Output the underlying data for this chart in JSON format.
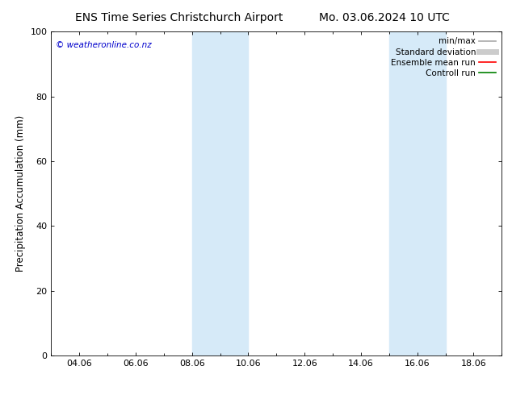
{
  "title_left": "ENS Time Series Christchurch Airport",
  "title_right": "Mo. 03.06.2024 10 UTC",
  "ylabel": "Precipitation Accumulation (mm)",
  "watermark": "© weatheronline.co.nz",
  "xlim": [
    3.0,
    19.0
  ],
  "ylim": [
    0,
    100
  ],
  "xticks": [
    4.0,
    6.0,
    8.0,
    10.0,
    12.0,
    14.0,
    16.0,
    18.0
  ],
  "xticklabels": [
    "04.06",
    "06.06",
    "08.06",
    "10.06",
    "12.06",
    "14.06",
    "16.06",
    "18.06"
  ],
  "yticks": [
    0,
    20,
    40,
    60,
    80,
    100
  ],
  "shaded_bands": [
    {
      "x_start": 8.0,
      "x_end": 10.0,
      "color": "#d6eaf8",
      "alpha": 1.0
    },
    {
      "x_start": 15.0,
      "x_end": 17.0,
      "color": "#d6eaf8",
      "alpha": 1.0
    }
  ],
  "legend_items": [
    {
      "label": "min/max",
      "color": "#aaaaaa",
      "lw": 1.2,
      "style": "solid"
    },
    {
      "label": "Standard deviation",
      "color": "#cccccc",
      "lw": 5,
      "style": "solid"
    },
    {
      "label": "Ensemble mean run",
      "color": "#ff0000",
      "lw": 1.2,
      "style": "solid"
    },
    {
      "label": "Controll run",
      "color": "#008000",
      "lw": 1.2,
      "style": "solid"
    }
  ],
  "watermark_color": "#0000cc",
  "bg_color": "#ffffff",
  "title_fontsize": 10,
  "tick_fontsize": 8,
  "legend_fontsize": 7.5,
  "ylabel_fontsize": 8.5,
  "watermark_fontsize": 7.5
}
